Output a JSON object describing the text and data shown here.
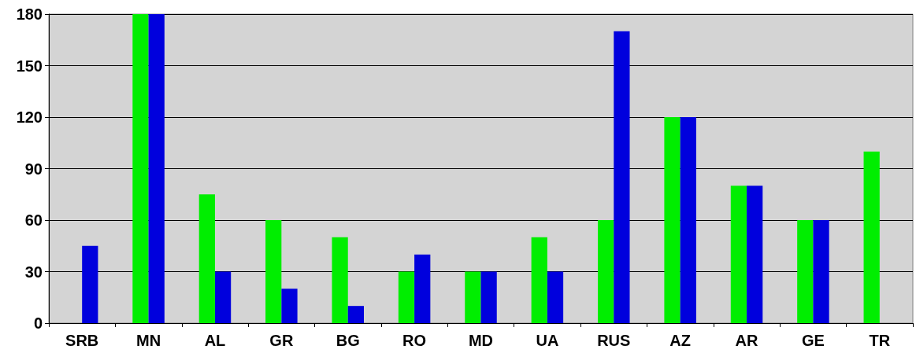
{
  "chart_data": {
    "type": "bar",
    "categories": [
      "SRB",
      "MN",
      "AL",
      "GR",
      "BG",
      "RO",
      "MD",
      "UA",
      "RUS",
      "AZ",
      "AR",
      "GE",
      "TR"
    ],
    "series": [
      {
        "color": "#00ee00",
        "values": [
          0,
          180,
          75,
          60,
          50,
          30,
          30,
          50,
          60,
          120,
          80,
          60,
          100
        ]
      },
      {
        "color": "#0000dd",
        "values": [
          45,
          180,
          30,
          20,
          10,
          40,
          30,
          30,
          170,
          120,
          80,
          60,
          0
        ]
      }
    ],
    "ylim": [
      0,
      180
    ],
    "yticks": [
      0,
      30,
      60,
      90,
      120,
      150,
      180
    ],
    "grid": "y"
  }
}
